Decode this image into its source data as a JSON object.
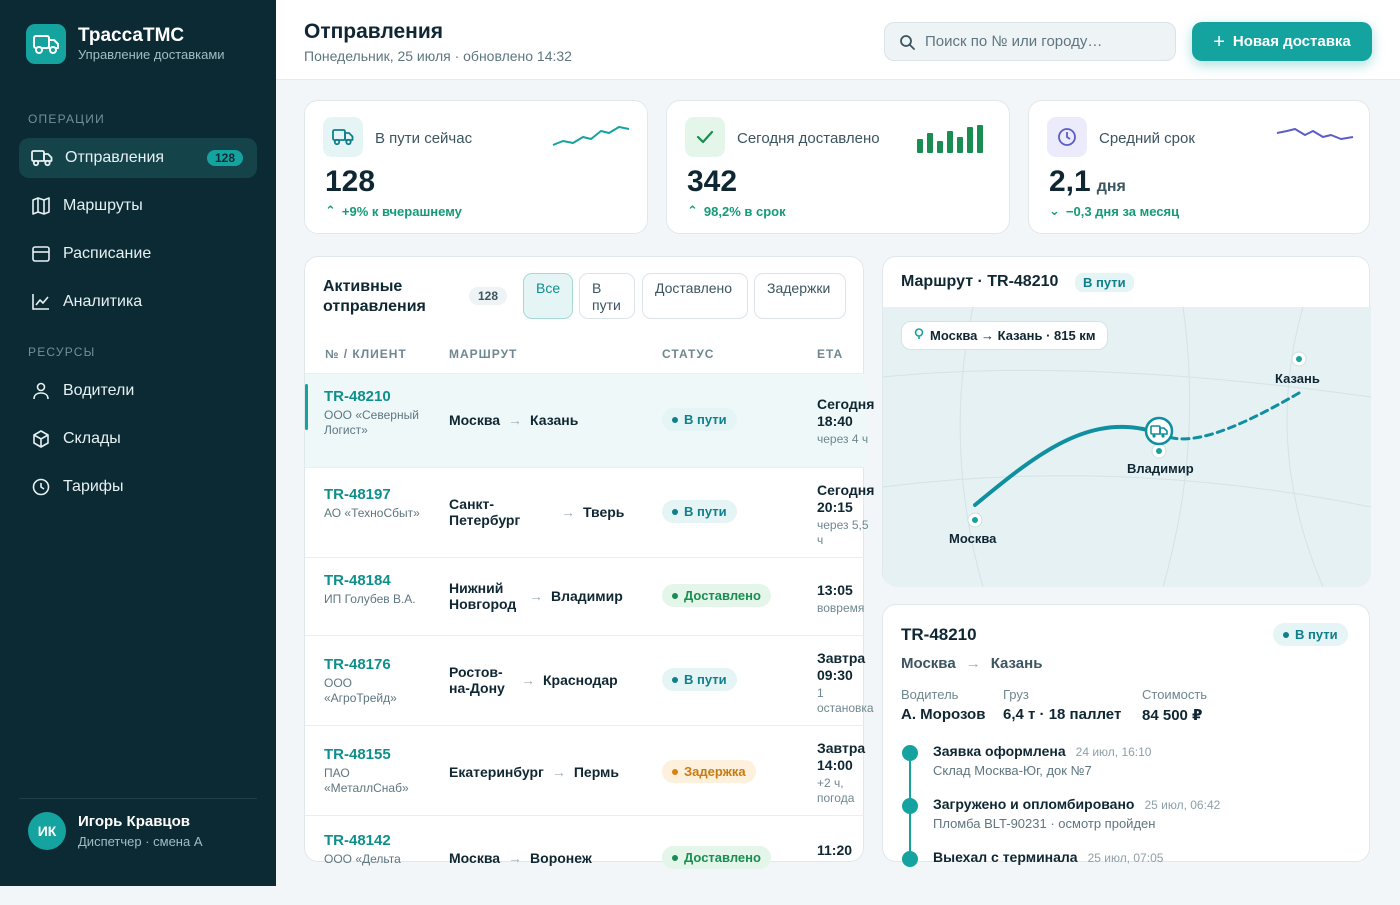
{
  "brand": {
    "name": "ТрассаТМС",
    "subtitle": "Управление доставками",
    "logo_icon": "truck-icon"
  },
  "nav": {
    "section_ops": "ОПЕРАЦИИ",
    "section_res": "РЕСУРСЫ",
    "items": [
      {
        "label": "Отправления",
        "icon": "truck-icon",
        "badge": "128",
        "active": true
      },
      {
        "label": "Маршруты",
        "icon": "map-icon"
      },
      {
        "label": "Расписание",
        "icon": "calendar-icon"
      },
      {
        "label": "Аналитика",
        "icon": "chart-icon"
      },
      {
        "label": "Водители",
        "icon": "user-icon"
      },
      {
        "label": "Склады",
        "icon": "box-icon"
      },
      {
        "label": "Тарифы",
        "icon": "clock-icon"
      }
    ]
  },
  "user": {
    "initials": "ИК",
    "name": "Игорь Кравцов",
    "role": "Диспетчер · смена А"
  },
  "header": {
    "title": "Отправления",
    "subtitle": "Понедельник, 25 июля · обновлено 14:32",
    "search_placeholder": "Поиск по № или городу…",
    "new_button": "Новая доставка"
  },
  "kpis": [
    {
      "label": "В пути сейчас",
      "value": "128",
      "unit": "",
      "delta": "+9% к вчерашнему",
      "trend": "up",
      "icon": "truck-icon"
    },
    {
      "label": "Сегодня доставлено",
      "value": "342",
      "unit": "",
      "delta": "98,2% в срок",
      "trend": "up",
      "icon": "check-icon"
    },
    {
      "label": "Средний срок",
      "value": "2,1",
      "unit": "дня",
      "delta": "−0,3 дня за месяц",
      "trend": "down",
      "icon": "clock-icon"
    }
  ],
  "table": {
    "title": "Активные отправления",
    "count": "128",
    "filters": [
      "Все",
      "В пути",
      "Доставлено",
      "Задержки"
    ],
    "columns": [
      "№ / КЛИЕНТ",
      "МАРШРУТ",
      "СТАТУС",
      "ETA"
    ],
    "rows": [
      {
        "id": "TR-48210",
        "client": "ООО «Северный Логист»",
        "from": "Москва",
        "to": "Казань",
        "status": "В пути",
        "status_kind": "way",
        "eta": "Сегодня 18:40",
        "eta_sub": "через 4 ч",
        "selected": true
      },
      {
        "id": "TR-48197",
        "client": "АО «ТехноСбыт»",
        "from": "Санкт-Петербург",
        "to": "Тверь",
        "status": "В пути",
        "status_kind": "way",
        "eta": "Сегодня 20:15",
        "eta_sub": "через 5,5 ч"
      },
      {
        "id": "TR-48184",
        "client": "ИП Голубев В.А.",
        "from": "Нижний Новгород",
        "to": "Владимир",
        "status": "Доставлено",
        "status_kind": "done",
        "eta": "13:05",
        "eta_sub": "вовремя"
      },
      {
        "id": "TR-48176",
        "client": "ООО «АгроТрейд»",
        "from": "Ростов-на-Дону",
        "to": "Краснодар",
        "status": "В пути",
        "status_kind": "way",
        "eta": "Завтра 09:30",
        "eta_sub": "1 остановка"
      },
      {
        "id": "TR-48155",
        "client": "ПАО «МеталлСнаб»",
        "from": "Екатеринбург",
        "to": "Пермь",
        "status": "Задержка",
        "status_kind": "late",
        "eta": "Завтра 14:00",
        "eta_sub": "+2 ч, погода"
      },
      {
        "id": "TR-48142",
        "client": "ООО «Дельта",
        "from": "Москва",
        "to": "Воронеж",
        "status": "Доставлено",
        "status_kind": "done",
        "eta": "11:20",
        "eta_sub": ""
      }
    ]
  },
  "map": {
    "title": "Маршрут · TR-48210",
    "badge": "В пути",
    "pill": "Москва → Казань · 815 км",
    "cities": {
      "from": "Москва",
      "mid": "Владимир",
      "to": "Казань"
    }
  },
  "details": {
    "id": "TR-48210",
    "badge": "В пути",
    "from": "Москва",
    "to": "Казань",
    "fields": [
      {
        "label": "Водитель",
        "value": "А. Морозов"
      },
      {
        "label": "Груз",
        "value": "6,4 т · 18 паллет"
      },
      {
        "label": "Стоимость",
        "value": "84 500 ₽"
      }
    ],
    "timeline": [
      {
        "title": "Заявка оформлена",
        "time": "24 июл, 16:10",
        "desc": "Склад Москва-Юг, док №7"
      },
      {
        "title": "Загружено и опломбировано",
        "time": "25 июл, 06:42",
        "desc": "Пломба BLT-90231 · осмотр пройден"
      },
      {
        "title": "Выехал с терминала",
        "time": "25 июл, 07:05",
        "desc": ""
      }
    ]
  },
  "colors": {
    "accent": "#15a3a0",
    "sidebar": "#0c2a33",
    "success": "#1a8d52",
    "warning": "#d9830f"
  }
}
